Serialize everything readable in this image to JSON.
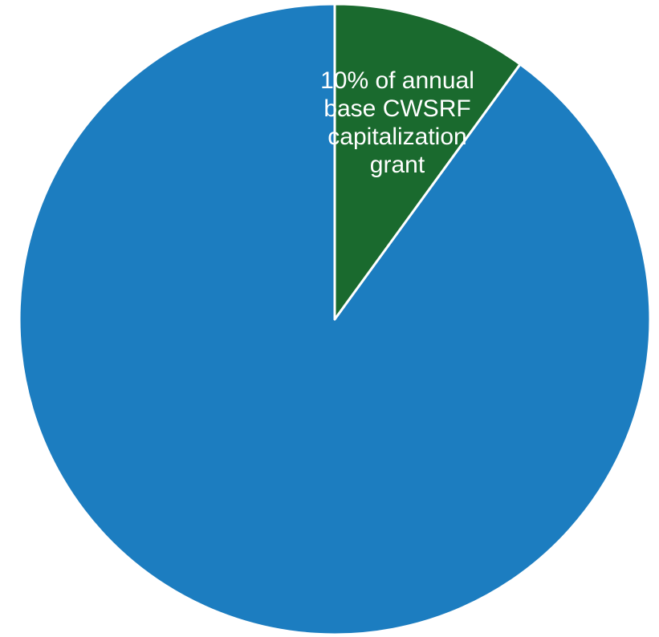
{
  "chart_data": {
    "type": "pie",
    "categories": [
      "10% of annual base CWSRF capitalization grant",
      ""
    ],
    "values": [
      10,
      90
    ],
    "colors": [
      "#1a6a2e",
      "#1c7dc0"
    ],
    "label_lines": [
      [
        "10% of annual",
        "base CWSRF",
        "capitalization",
        "grant"
      ]
    ],
    "start_angle": "12 o'clock",
    "direction": "clockwise",
    "legend": "none"
  }
}
